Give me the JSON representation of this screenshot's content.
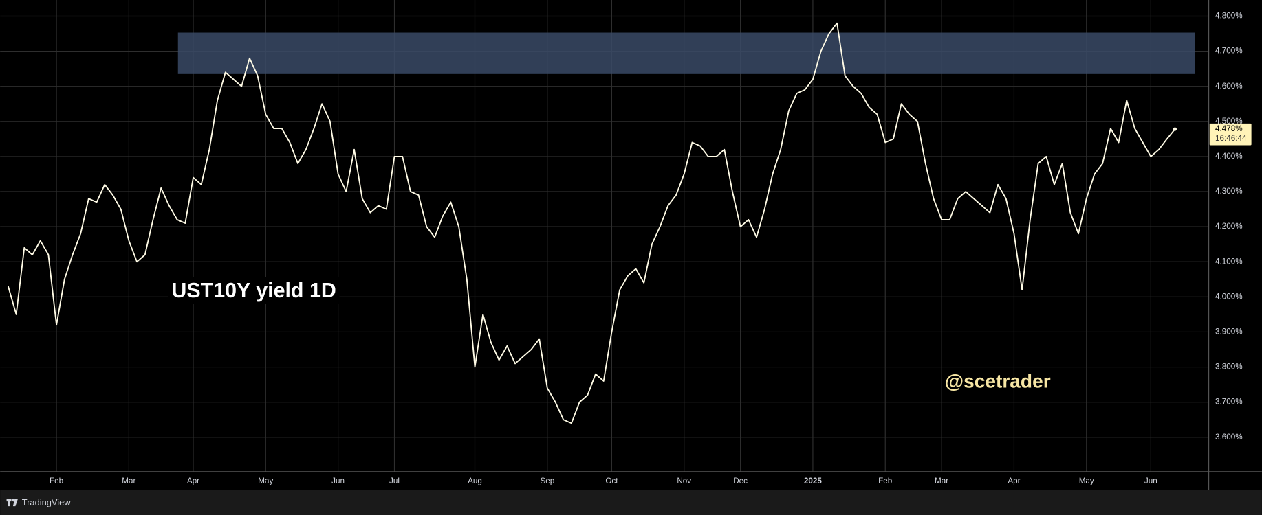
{
  "chart_data": {
    "type": "line",
    "color": "#fffbe6",
    "grid": true,
    "annotations": [
      "UST10Y yield 1D",
      "@scetrader"
    ],
    "brand": "TradingView",
    "zone": {
      "ymin": 4.635,
      "ymax": 4.753,
      "color": "#3a4a66"
    },
    "price_label": {
      "value": 4.478,
      "label": "4.478%",
      "time": "16:46:44"
    },
    "ylim": [
      3.502,
      4.846
    ],
    "yticks": [
      {
        "value": 3.6,
        "label": "3.600%"
      },
      {
        "value": 3.7,
        "label": "3.700%"
      },
      {
        "value": 3.8,
        "label": "3.800%"
      },
      {
        "value": 3.9,
        "label": "3.900%"
      },
      {
        "value": 4.0,
        "label": "4.000%"
      },
      {
        "value": 4.1,
        "label": "4.100%"
      },
      {
        "value": 4.2,
        "label": "4.200%"
      },
      {
        "value": 4.3,
        "label": "4.300%"
      },
      {
        "value": 4.4,
        "label": "4.400%"
      },
      {
        "value": 4.5,
        "label": "4.500%"
      },
      {
        "value": 4.6,
        "label": "4.600%"
      },
      {
        "value": 4.7,
        "label": "4.700%"
      },
      {
        "value": 4.8,
        "label": "4.800%"
      }
    ],
    "categories": [
      null,
      null,
      null,
      null,
      null,
      null,
      "Feb",
      null,
      null,
      null,
      null,
      null,
      null,
      null,
      null,
      "Mar",
      null,
      null,
      null,
      null,
      null,
      null,
      null,
      "Apr",
      null,
      null,
      null,
      null,
      null,
      null,
      null,
      null,
      "May",
      null,
      null,
      null,
      null,
      null,
      null,
      null,
      null,
      "Jun",
      null,
      null,
      null,
      null,
      null,
      null,
      "Jul",
      null,
      null,
      null,
      null,
      null,
      null,
      null,
      null,
      null,
      "Aug",
      null,
      null,
      null,
      null,
      null,
      null,
      null,
      null,
      "Sep",
      null,
      null,
      null,
      null,
      null,
      null,
      null,
      "Oct",
      null,
      null,
      null,
      null,
      null,
      null,
      null,
      null,
      "Nov",
      null,
      null,
      null,
      null,
      null,
      null,
      "Dec",
      null,
      null,
      null,
      null,
      null,
      null,
      null,
      null,
      "2025",
      null,
      null,
      null,
      null,
      null,
      null,
      null,
      null,
      "Feb",
      null,
      null,
      null,
      null,
      null,
      null,
      "Mar",
      null,
      null,
      null,
      null,
      null,
      null,
      null,
      null,
      "Apr",
      null,
      null,
      null,
      null,
      null,
      null,
      null,
      null,
      "May",
      null,
      null,
      null,
      null,
      null,
      null,
      null,
      "Jun",
      null,
      null,
      null
    ],
    "values": [
      4.03,
      3.95,
      4.14,
      4.12,
      4.16,
      4.12,
      3.92,
      4.05,
      4.12,
      4.18,
      4.28,
      4.27,
      4.32,
      4.29,
      4.25,
      4.16,
      4.1,
      4.12,
      4.22,
      4.31,
      4.26,
      4.22,
      4.21,
      4.34,
      4.32,
      4.42,
      4.56,
      4.64,
      4.62,
      4.6,
      4.68,
      4.63,
      4.52,
      4.48,
      4.48,
      4.44,
      4.38,
      4.42,
      4.48,
      4.55,
      4.5,
      4.35,
      4.3,
      4.42,
      4.28,
      4.24,
      4.26,
      4.25,
      4.4,
      4.4,
      4.3,
      4.29,
      4.2,
      4.17,
      4.23,
      4.27,
      4.2,
      4.05,
      3.8,
      3.95,
      3.87,
      3.82,
      3.86,
      3.81,
      3.83,
      3.85,
      3.88,
      3.74,
      3.7,
      3.65,
      3.64,
      3.7,
      3.72,
      3.78,
      3.76,
      3.9,
      4.02,
      4.06,
      4.08,
      4.04,
      4.15,
      4.2,
      4.26,
      4.29,
      4.35,
      4.44,
      4.43,
      4.4,
      4.4,
      4.42,
      4.3,
      4.2,
      4.22,
      4.17,
      4.25,
      4.35,
      4.42,
      4.53,
      4.58,
      4.59,
      4.62,
      4.7,
      4.75,
      4.78,
      4.63,
      4.6,
      4.58,
      4.54,
      4.52,
      4.44,
      4.45,
      4.55,
      4.52,
      4.5,
      4.38,
      4.28,
      4.22,
      4.22,
      4.28,
      4.3,
      4.28,
      4.26,
      4.24,
      4.32,
      4.28,
      4.18,
      4.02,
      4.22,
      4.38,
      4.4,
      4.32,
      4.38,
      4.24,
      4.18,
      4.28,
      4.35,
      4.38,
      4.48,
      4.44,
      4.56,
      4.48,
      4.44,
      4.4,
      4.42,
      4.45,
      4.478
    ]
  }
}
